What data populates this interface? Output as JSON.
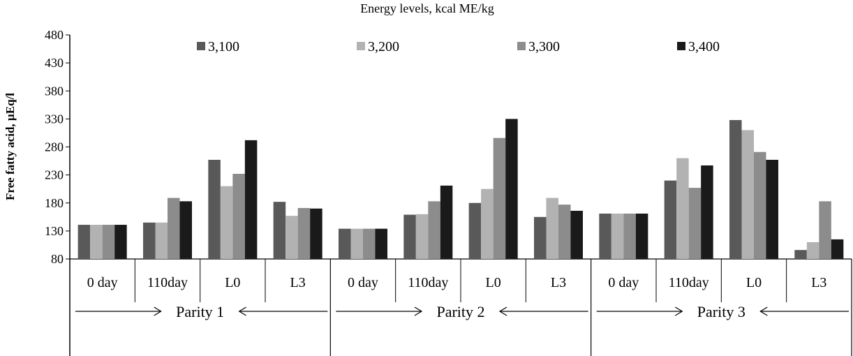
{
  "chart_data": {
    "type": "bar",
    "title": "Energy levels, kcal ME/kg",
    "ylabel": "Free fatty acid, µEq/l",
    "xlabel": "",
    "ylim": [
      80,
      480
    ],
    "yticks": [
      80,
      130,
      180,
      230,
      280,
      330,
      380,
      430,
      480
    ],
    "legend_position": "top",
    "groups": [
      {
        "label": "Parity 1",
        "categories": [
          "0 day",
          "110day",
          "L0",
          "L3"
        ]
      },
      {
        "label": "Parity 2",
        "categories": [
          "0 day",
          "110day",
          "L0",
          "L3"
        ]
      },
      {
        "label": "Parity 3",
        "categories": [
          "0 day",
          "110day",
          "L0",
          "L3"
        ]
      }
    ],
    "series": [
      {
        "name": "3,100",
        "color": "#595959",
        "values": [
          141,
          145,
          257,
          182,
          134,
          159,
          180,
          155,
          161,
          220,
          328,
          96
        ]
      },
      {
        "name": "3,200",
        "color": "#b2b2b2",
        "values": [
          141,
          145,
          210,
          157,
          134,
          160,
          205,
          189,
          161,
          260,
          310,
          110
        ]
      },
      {
        "name": "3,300",
        "color": "#8c8c8c",
        "values": [
          141,
          189,
          232,
          171,
          134,
          183,
          296,
          177,
          161,
          207,
          271,
          183
        ]
      },
      {
        "name": "3,400",
        "color": "#1a1a1a",
        "values": [
          141,
          183,
          292,
          170,
          134,
          211,
          330,
          166,
          161,
          247,
          257,
          115
        ]
      }
    ]
  }
}
